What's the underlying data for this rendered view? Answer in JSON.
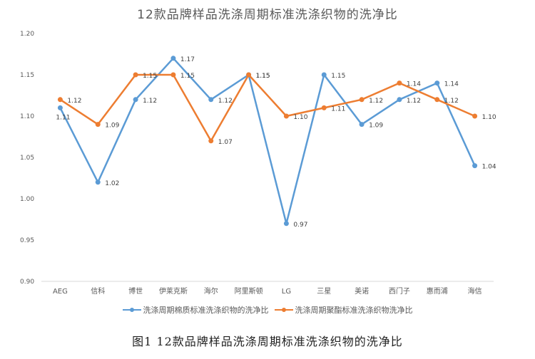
{
  "title": "12款品牌样品洗涤周期标准洗涤织物的洗净比",
  "caption": "图1  12款品牌样品洗涤周期标准洗涤织物的洗净比",
  "legend": [
    {
      "label": "洗涤周期棉质标准洗涤织物的洗净比",
      "color": "#5B9BD5"
    },
    {
      "label": "洗涤周期聚酯标准洗涤织物洗净比",
      "color": "#ED7D31"
    }
  ],
  "chart_data": {
    "type": "line",
    "title": "12款品牌样品洗涤周期标准洗涤织物的洗净比",
    "xlabel": "",
    "ylabel": "",
    "ylim": [
      0.9,
      1.2
    ],
    "yticks": [
      "1.20",
      "1.15",
      "1.10",
      "1.05",
      "1.00",
      "0.95",
      "0.90"
    ],
    "grid": false,
    "legend_position": "bottom",
    "categories": [
      "AEG",
      "信科",
      "博世",
      "伊莱克斯",
      "海尔",
      "阿里斯顿",
      "LG",
      "三星",
      "美诺",
      "西门子",
      "惠而浦",
      "海信"
    ],
    "series": [
      {
        "name": "洗涤周期棉质标准洗涤织物的洗净比",
        "color": "#5B9BD5",
        "values": [
          1.11,
          1.02,
          1.12,
          1.17,
          1.12,
          1.15,
          0.97,
          1.15,
          1.09,
          1.12,
          1.14,
          1.04
        ],
        "labels": [
          "1.11",
          "1.02",
          "1.12",
          "1.17",
          "1.12",
          "1.15",
          "0.97",
          "1.15",
          "1.09",
          "1.12",
          "1.14",
          "1.04"
        ]
      },
      {
        "name": "洗涤周期聚酯标准洗涤织物洗净比",
        "color": "#ED7D31",
        "values": [
          1.12,
          1.09,
          1.15,
          1.15,
          1.07,
          1.15,
          1.1,
          1.11,
          1.12,
          1.14,
          1.12,
          1.1
        ],
        "labels": [
          "1.12",
          "1.09",
          "1.15",
          "1.15",
          "1.07",
          "1.15",
          "1.10",
          "1.11",
          "1.12",
          "1.14",
          "1.12",
          "1.10"
        ]
      }
    ]
  }
}
